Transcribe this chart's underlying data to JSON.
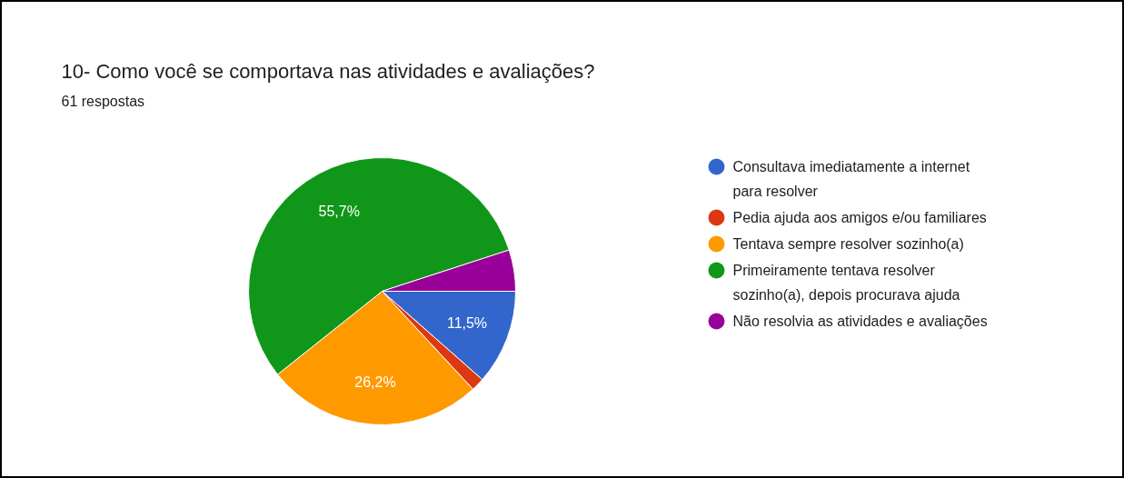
{
  "chart_data": {
    "type": "pie",
    "title": "10- Como você se comportava nas atividades e avaliações?",
    "subtitle": "61 respostas",
    "categories": [
      "Consultava imediatamente a internet para resolver",
      "Pedia ajuda aos amigos e/ou familiares",
      "Tentava sempre resolver sozinho(a)",
      "Primeiramente tentava resolver sozinho(a), depois procurava ajuda",
      "Não resolvia as atividades e avaliações"
    ],
    "values": [
      11.5,
      1.6,
      26.2,
      55.7,
      5.0
    ],
    "colors": [
      "#3366cc",
      "#dc3912",
      "#ff9900",
      "#109618",
      "#990099"
    ],
    "value_labels": [
      "11,5%",
      null,
      "26,2%",
      "55,7%",
      null
    ],
    "legend": "right"
  }
}
